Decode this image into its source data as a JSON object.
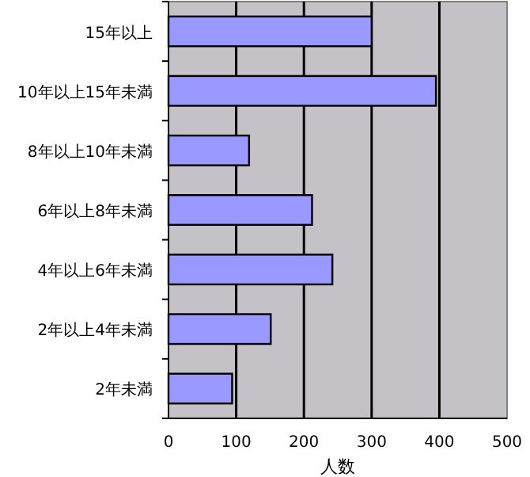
{
  "chart_data": {
    "type": "bar",
    "orientation": "horizontal",
    "xlabel": "人数",
    "categories": [
      "15年以上",
      "10年以上15年未満",
      "8年以上10年未満",
      "6年以上8年未満",
      "4年以上6年未満",
      "2年以上4年未満",
      "2年未満"
    ],
    "values": [
      300,
      395,
      119,
      212,
      242,
      151,
      94
    ],
    "color": "#9999ff",
    "xlim": [
      0,
      500
    ],
    "xticks": [
      0,
      100,
      200,
      300,
      400,
      500
    ],
    "grid": "x"
  }
}
